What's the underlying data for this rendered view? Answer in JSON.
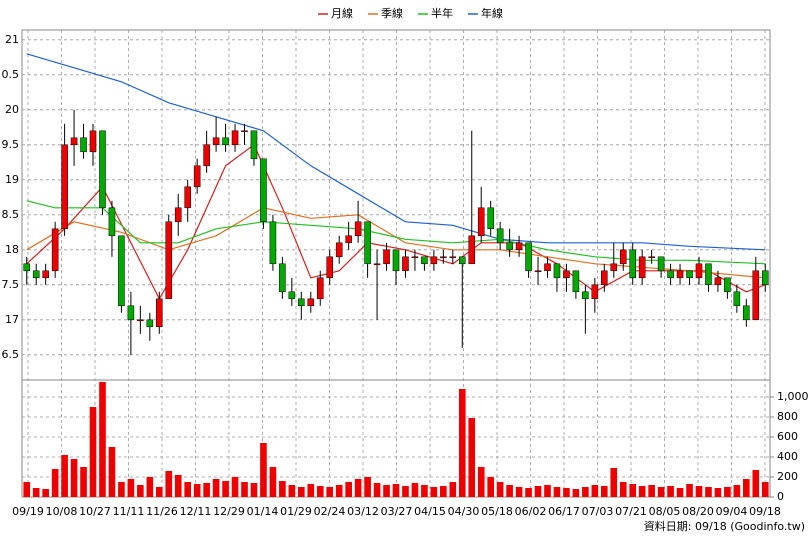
{
  "chart_data": {
    "type": "candlestick",
    "legend_position": "top",
    "series": [
      {
        "name": "月線",
        "color": "#d62020",
        "x": [
          0,
          4,
          8,
          11,
          14,
          17,
          21,
          24,
          27,
          30,
          33,
          36,
          40,
          45,
          48,
          52,
          56,
          60,
          64,
          68,
          72,
          76,
          78
        ],
        "values": [
          17.8,
          18.3,
          18.9,
          18.1,
          17.3,
          18.0,
          19.2,
          19.5,
          18.6,
          17.6,
          17.7,
          18.1,
          18.0,
          17.8,
          18.1,
          18.1,
          17.8,
          17.4,
          17.7,
          17.7,
          17.7,
          17.4,
          17.5
        ]
      },
      {
        "name": "季線",
        "color": "#e07020",
        "x": [
          0,
          5,
          10,
          15,
          20,
          25,
          30,
          35,
          40,
          45,
          50,
          55,
          60,
          65,
          70,
          78
        ],
        "values": [
          18.0,
          18.4,
          18.25,
          18.0,
          18.2,
          18.6,
          18.45,
          18.5,
          18.1,
          18.0,
          18.0,
          17.9,
          17.8,
          17.75,
          17.7,
          17.6
        ]
      },
      {
        "name": "半年",
        "color": "#20c020",
        "x": [
          0,
          3,
          8,
          12,
          16,
          20,
          25,
          30,
          35,
          40,
          45,
          50,
          55,
          60,
          65,
          70,
          78
        ],
        "values": [
          18.7,
          18.6,
          18.6,
          18.1,
          18.1,
          18.3,
          18.4,
          18.35,
          18.3,
          18.15,
          18.1,
          18.15,
          18.0,
          17.9,
          17.85,
          17.85,
          17.8
        ]
      },
      {
        "name": "年線",
        "color": "#2060d0",
        "x": [
          0,
          5,
          10,
          15,
          20,
          25,
          30,
          35,
          40,
          45,
          50,
          55,
          60,
          65,
          70,
          78
        ],
        "values": [
          20.8,
          20.6,
          20.4,
          20.1,
          19.9,
          19.7,
          19.2,
          18.8,
          18.4,
          18.35,
          18.15,
          18.1,
          18.1,
          18.1,
          18.05,
          18.0
        ]
      }
    ],
    "up_color": "#ee0000",
    "down_color": "#00aa00",
    "volume_color": "#ee0000",
    "candles": [
      [
        17.8,
        17.9,
        17.5,
        17.7
      ],
      [
        17.7,
        17.8,
        17.5,
        17.6
      ],
      [
        17.6,
        17.8,
        17.5,
        17.7
      ],
      [
        17.7,
        18.4,
        17.6,
        18.3
      ],
      [
        18.3,
        19.8,
        18.2,
        19.5
      ],
      [
        19.5,
        20.0,
        19.2,
        19.6
      ],
      [
        19.6,
        19.8,
        19.3,
        19.4
      ],
      [
        19.4,
        19.8,
        19.2,
        19.7
      ],
      [
        19.7,
        19.7,
        18.5,
        18.6
      ],
      [
        18.6,
        18.7,
        17.9,
        18.2
      ],
      [
        18.2,
        18.2,
        17.1,
        17.2
      ],
      [
        17.2,
        17.4,
        16.5,
        17.0
      ],
      [
        17.0,
        17.2,
        16.8,
        17.0
      ],
      [
        17.0,
        17.1,
        16.7,
        16.9
      ],
      [
        16.9,
        17.4,
        16.8,
        17.3
      ],
      [
        17.3,
        18.5,
        17.3,
        18.4
      ],
      [
        18.4,
        18.8,
        18.2,
        18.6
      ],
      [
        18.6,
        19.0,
        18.4,
        18.9
      ],
      [
        18.9,
        19.3,
        18.8,
        19.2
      ],
      [
        19.2,
        19.7,
        19.1,
        19.5
      ],
      [
        19.5,
        19.9,
        19.4,
        19.6
      ],
      [
        19.6,
        19.8,
        19.4,
        19.5
      ],
      [
        19.5,
        19.8,
        19.4,
        19.7
      ],
      [
        19.7,
        19.8,
        19.5,
        19.7
      ],
      [
        19.7,
        19.7,
        19.2,
        19.3
      ],
      [
        19.3,
        19.3,
        18.3,
        18.4
      ],
      [
        18.4,
        18.5,
        17.7,
        17.8
      ],
      [
        17.8,
        17.9,
        17.3,
        17.4
      ],
      [
        17.4,
        17.6,
        17.2,
        17.3
      ],
      [
        17.3,
        17.4,
        17.0,
        17.2
      ],
      [
        17.2,
        17.4,
        17.1,
        17.3
      ],
      [
        17.3,
        17.7,
        17.2,
        17.6
      ],
      [
        17.6,
        18.0,
        17.5,
        17.9
      ],
      [
        17.9,
        18.2,
        17.8,
        18.1
      ],
      [
        18.1,
        18.4,
        18.0,
        18.2
      ],
      [
        18.2,
        18.7,
        18.1,
        18.4
      ],
      [
        18.4,
        18.4,
        17.6,
        17.8
      ],
      [
        17.8,
        18.0,
        17.0,
        17.8
      ],
      [
        17.8,
        18.1,
        17.7,
        18.0
      ],
      [
        18.0,
        18.0,
        17.5,
        17.7
      ],
      [
        17.7,
        18.0,
        17.6,
        17.9
      ],
      [
        17.9,
        18.0,
        17.7,
        17.9
      ],
      [
        17.9,
        17.9,
        17.7,
        17.8
      ],
      [
        17.8,
        18.0,
        17.7,
        17.9
      ],
      [
        17.9,
        18.0,
        17.8,
        17.9
      ],
      [
        17.9,
        18.0,
        17.8,
        17.9
      ],
      [
        17.9,
        17.9,
        16.6,
        17.8
      ],
      [
        17.8,
        19.7,
        17.8,
        18.2
      ],
      [
        18.2,
        18.9,
        18.1,
        18.6
      ],
      [
        18.6,
        18.7,
        18.2,
        18.3
      ],
      [
        18.3,
        18.4,
        18.0,
        18.1
      ],
      [
        18.1,
        18.3,
        17.9,
        18.0
      ],
      [
        18.0,
        18.2,
        17.9,
        18.1
      ],
      [
        18.1,
        18.1,
        17.6,
        17.7
      ],
      [
        17.7,
        17.9,
        17.5,
        17.7
      ],
      [
        17.7,
        17.9,
        17.6,
        17.8
      ],
      [
        17.8,
        17.8,
        17.4,
        17.6
      ],
      [
        17.6,
        17.8,
        17.4,
        17.7
      ],
      [
        17.7,
        17.7,
        17.3,
        17.4
      ],
      [
        17.4,
        17.5,
        16.8,
        17.3
      ],
      [
        17.3,
        17.6,
        17.1,
        17.5
      ],
      [
        17.5,
        17.8,
        17.4,
        17.7
      ],
      [
        17.7,
        18.1,
        17.6,
        17.8
      ],
      [
        17.8,
        18.1,
        17.7,
        18.0
      ],
      [
        18.0,
        18.1,
        17.5,
        17.6
      ],
      [
        17.6,
        18.0,
        17.5,
        17.9
      ],
      [
        17.9,
        18.0,
        17.8,
        17.9
      ],
      [
        17.9,
        17.9,
        17.6,
        17.7
      ],
      [
        17.7,
        17.8,
        17.5,
        17.6
      ],
      [
        17.6,
        17.8,
        17.5,
        17.7
      ],
      [
        17.7,
        17.7,
        17.5,
        17.6
      ],
      [
        17.6,
        17.9,
        17.5,
        17.8
      ],
      [
        17.8,
        17.8,
        17.4,
        17.5
      ],
      [
        17.5,
        17.7,
        17.4,
        17.6
      ],
      [
        17.6,
        17.6,
        17.3,
        17.4
      ],
      [
        17.4,
        17.5,
        17.1,
        17.2
      ],
      [
        17.2,
        17.3,
        16.9,
        17.0
      ],
      [
        17.0,
        17.9,
        17.0,
        17.7
      ],
      [
        17.7,
        17.8,
        17.4,
        17.5
      ]
    ],
    "volume": [
      150,
      90,
      80,
      280,
      420,
      380,
      300,
      900,
      1150,
      500,
      150,
      180,
      120,
      200,
      100,
      260,
      220,
      150,
      130,
      140,
      180,
      160,
      200,
      150,
      140,
      540,
      300,
      160,
      120,
      100,
      130,
      110,
      100,
      120,
      150,
      180,
      200,
      140,
      120,
      130,
      110,
      140,
      120,
      100,
      110,
      150,
      1080,
      790,
      300,
      200,
      150,
      120,
      100,
      90,
      110,
      120,
      100,
      90,
      80,
      100,
      120,
      110,
      290,
      150,
      130,
      110,
      120,
      100,
      110,
      90,
      130,
      110,
      100,
      90,
      100,
      120,
      180,
      270,
      150
    ],
    "x_labels": [
      "09/19",
      "10/08",
      "10/27",
      "11/11",
      "11/26",
      "12/11",
      "12/29",
      "01/14",
      "01/29",
      "02/24",
      "03/12",
      "03/27",
      "04/15",
      "04/30",
      "05/18",
      "06/02",
      "06/17",
      "07/03",
      "07/21",
      "08/05",
      "08/20",
      "09/04",
      "09/18"
    ],
    "ylim": [
      16.14,
      21.14
    ],
    "yticks": [
      21,
      {
        "value": 20.5,
        "label": "0.5"
      },
      20,
      {
        "value": 19.5,
        "label": "9.5"
      },
      19,
      {
        "value": 18.5,
        "label": "8.5"
      },
      18,
      {
        "value": 17.5,
        "label": "7.5"
      },
      17,
      {
        "value": 16.5,
        "label": "6.5"
      }
    ],
    "y2lim": [
      0,
      1170
    ],
    "y2ticks": [
      0,
      200,
      400,
      600,
      800,
      {
        "value": 1000,
        "label": "1,000"
      }
    ],
    "grid": true,
    "footer": "資料日期: 09/18 (Goodinfo.tw)"
  }
}
